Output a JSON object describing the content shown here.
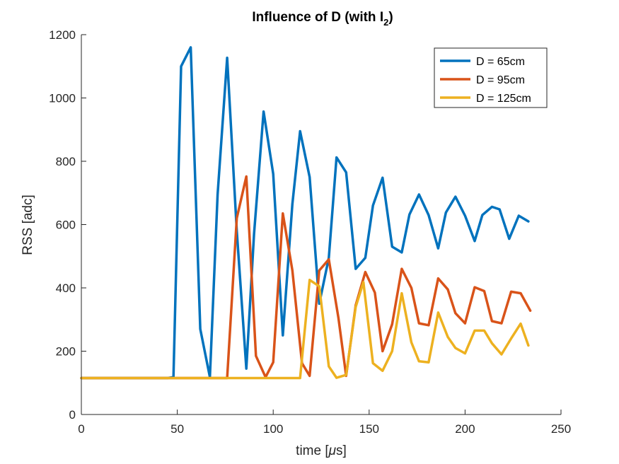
{
  "chart_data": {
    "type": "line",
    "title_main": "Influence of D (with I",
    "title_sub": "2",
    "title_end": ")",
    "xlabel_main": "time [",
    "xlabel_mu": "μ",
    "xlabel_end": "s]",
    "ylabel": "RSS [adc]",
    "xlim": [
      0,
      250
    ],
    "ylim": [
      0,
      1200
    ],
    "xticks": [
      0,
      50,
      100,
      150,
      200,
      250
    ],
    "yticks": [
      0,
      200,
      400,
      600,
      800,
      1000,
      1200
    ],
    "legend_position": "top-right",
    "grid": false,
    "series": [
      {
        "name": "D = 65cm",
        "color": "#0072BD",
        "points": [
          [
            0,
            115
          ],
          [
            45,
            115
          ],
          [
            48,
            118
          ],
          [
            52,
            1100
          ],
          [
            57,
            1160
          ],
          [
            62,
            270
          ],
          [
            67,
            118
          ],
          [
            71,
            695
          ],
          [
            76,
            1127
          ],
          [
            81,
            580
          ],
          [
            86,
            145
          ],
          [
            90,
            570
          ],
          [
            95,
            957
          ],
          [
            100,
            760
          ],
          [
            105,
            250
          ],
          [
            110,
            665
          ],
          [
            114,
            895
          ],
          [
            119,
            750
          ],
          [
            124,
            350
          ],
          [
            129,
            495
          ],
          [
            133,
            812
          ],
          [
            138,
            765
          ],
          [
            143,
            460
          ],
          [
            148,
            495
          ],
          [
            152,
            660
          ],
          [
            157,
            748
          ],
          [
            162,
            530
          ],
          [
            167,
            512
          ],
          [
            171,
            632
          ],
          [
            176,
            695
          ],
          [
            181,
            630
          ],
          [
            186,
            525
          ],
          [
            190,
            638
          ],
          [
            195,
            688
          ],
          [
            200,
            628
          ],
          [
            205,
            548
          ],
          [
            209,
            630
          ],
          [
            214,
            656
          ],
          [
            218,
            648
          ],
          [
            223,
            555
          ],
          [
            228,
            628
          ],
          [
            233,
            610
          ]
        ]
      },
      {
        "name": "D = 95cm",
        "color": "#D95319",
        "points": [
          [
            0,
            115
          ],
          [
            76,
            115
          ],
          [
            81,
            620
          ],
          [
            86,
            752
          ],
          [
            91,
            185
          ],
          [
            96,
            118
          ],
          [
            100,
            165
          ],
          [
            105,
            635
          ],
          [
            110,
            455
          ],
          [
            115,
            162
          ],
          [
            119,
            122
          ],
          [
            124,
            455
          ],
          [
            129,
            490
          ],
          [
            134,
            305
          ],
          [
            138,
            122
          ],
          [
            143,
            345
          ],
          [
            148,
            450
          ],
          [
            153,
            385
          ],
          [
            157,
            200
          ],
          [
            162,
            285
          ],
          [
            167,
            460
          ],
          [
            172,
            400
          ],
          [
            176,
            288
          ],
          [
            181,
            282
          ],
          [
            186,
            430
          ],
          [
            191,
            395
          ],
          [
            195,
            320
          ],
          [
            200,
            288
          ],
          [
            205,
            402
          ],
          [
            210,
            390
          ],
          [
            214,
            295
          ],
          [
            219,
            288
          ],
          [
            224,
            388
          ],
          [
            229,
            383
          ],
          [
            234,
            328
          ]
        ]
      },
      {
        "name": "D = 125cm",
        "color": "#EDB120",
        "points": [
          [
            0,
            115
          ],
          [
            114,
            115
          ],
          [
            119,
            425
          ],
          [
            124,
            405
          ],
          [
            129,
            152
          ],
          [
            133,
            116
          ],
          [
            138,
            125
          ],
          [
            143,
            340
          ],
          [
            147,
            418
          ],
          [
            152,
            162
          ],
          [
            157,
            138
          ],
          [
            162,
            200
          ],
          [
            167,
            383
          ],
          [
            172,
            228
          ],
          [
            176,
            168
          ],
          [
            181,
            165
          ],
          [
            186,
            322
          ],
          [
            191,
            245
          ],
          [
            195,
            210
          ],
          [
            200,
            193
          ],
          [
            205,
            265
          ],
          [
            210,
            265
          ],
          [
            214,
            225
          ],
          [
            219,
            190
          ],
          [
            224,
            240
          ],
          [
            229,
            287
          ],
          [
            233,
            218
          ]
        ]
      }
    ]
  }
}
